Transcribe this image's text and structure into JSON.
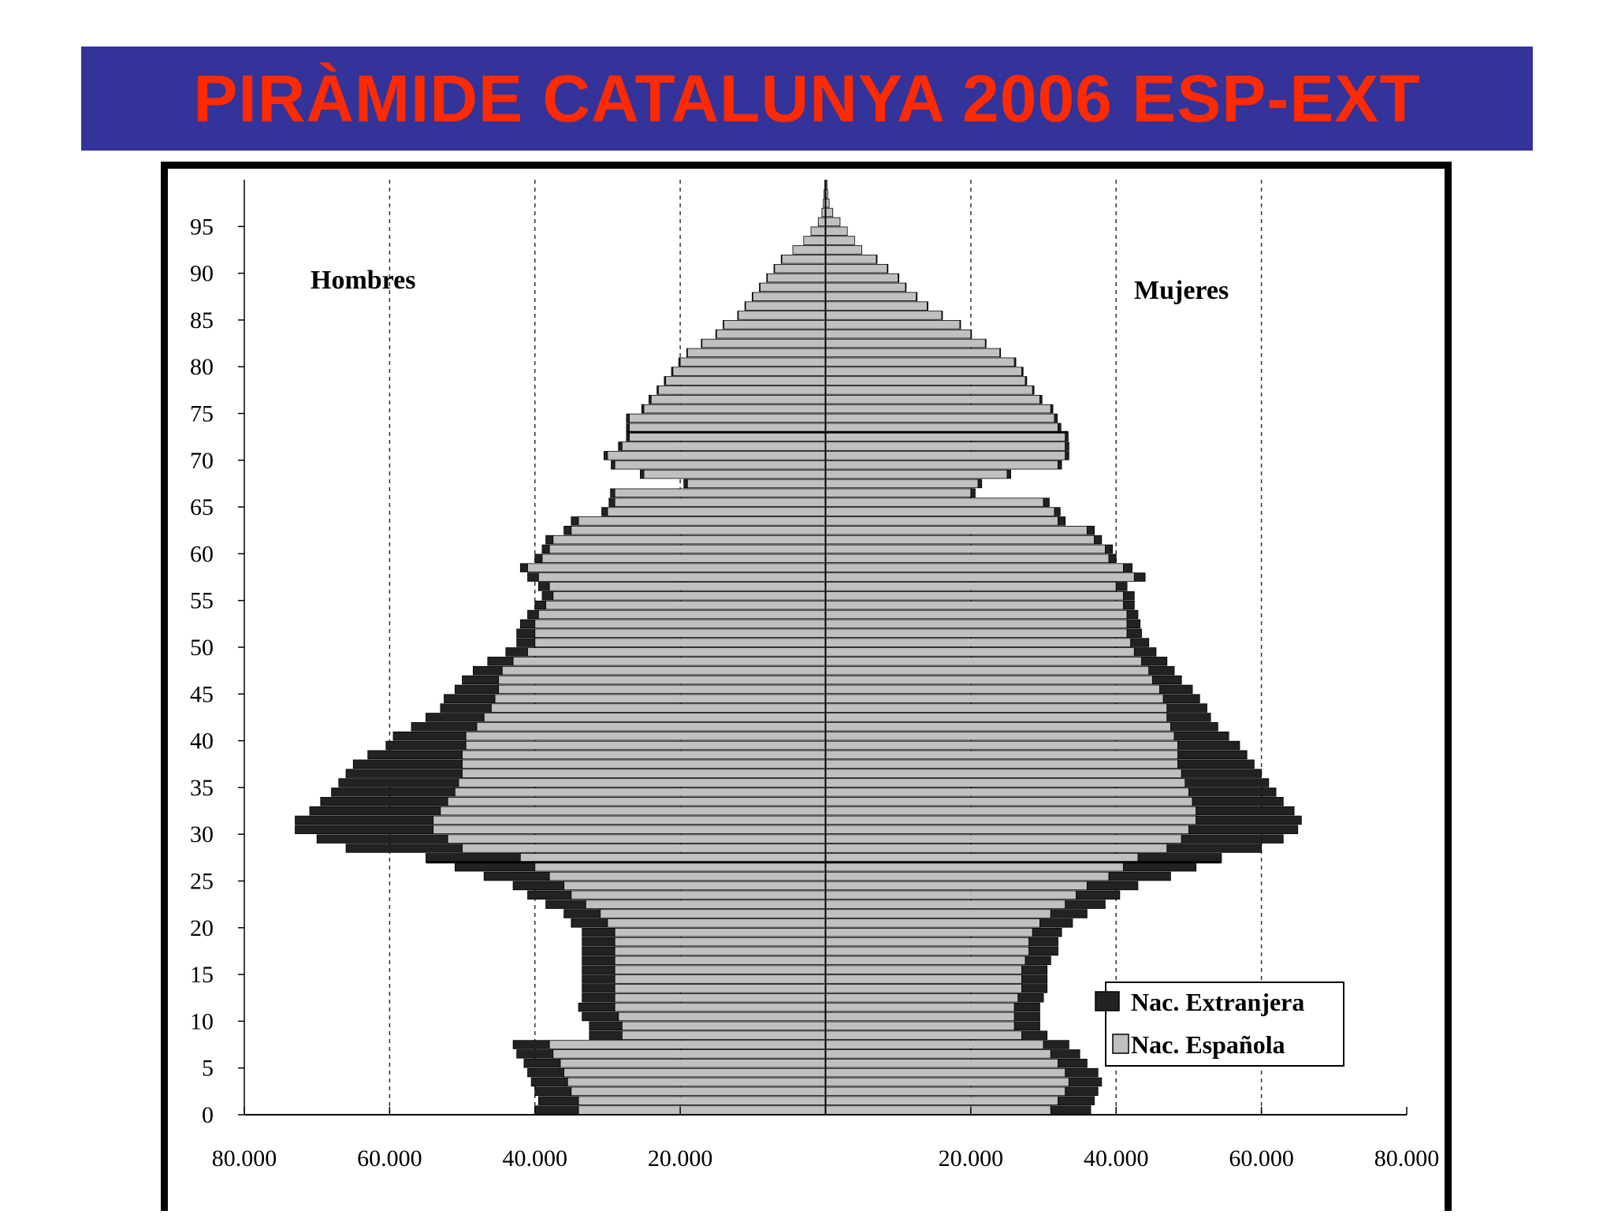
{
  "title": "PIRÀMIDE CATALUNYA 2006 ESP-EXT",
  "chart_data": {
    "type": "bar",
    "orientation": "horizontal-pyramid",
    "side_labels": {
      "left": "Hombres",
      "right": "Mujeres"
    },
    "x_ticks": [
      "80.000",
      "60.000",
      "40.000",
      "20.000",
      "20.000",
      "40.000",
      "60.000",
      "80.000"
    ],
    "xlim": [
      -80000,
      80000
    ],
    "y_ticks": [
      "0",
      "5",
      "10",
      "15",
      "20",
      "25",
      "30",
      "35",
      "40",
      "45",
      "50",
      "55",
      "60",
      "65",
      "70",
      "75",
      "80",
      "85",
      "90",
      "95"
    ],
    "ylim": [
      0,
      99
    ],
    "legend": [
      "Nac. Extranjera",
      "Nac. Española"
    ],
    "legend_position": "bottom-right",
    "colors": {
      "extranjera": "#222222",
      "espanola": "#c0c0c0"
    },
    "age_group_boundaries": [
      0,
      5,
      10,
      15,
      20,
      25,
      30,
      35,
      40,
      45,
      50,
      55,
      60,
      65,
      70,
      75,
      80,
      85,
      90,
      95
    ],
    "series": [
      {
        "name": "Nac. Española",
        "hombres_by_age": [
          34000,
          34000,
          35000,
          35500,
          36000,
          36500,
          37500,
          38000,
          28000,
          28000,
          28500,
          29000,
          29000,
          29000,
          29000,
          29000,
          29000,
          29000,
          29000,
          29000,
          30000,
          31000,
          33000,
          35000,
          36000,
          38000,
          40000,
          42000,
          50000,
          52000,
          54000,
          54000,
          53000,
          52000,
          51000,
          50500,
          50000,
          50000,
          50000,
          49500,
          49500,
          48000,
          47000,
          46000,
          45500,
          45000,
          45000,
          44500,
          43000,
          41000,
          40000,
          40000,
          40000,
          39500,
          38500,
          37500,
          38000,
          39500,
          41000,
          39000,
          38000,
          37500,
          35000,
          34000,
          30000,
          29000,
          29000,
          19000,
          25000,
          29000,
          30000,
          28000,
          27000,
          27000,
          27000,
          25000,
          24000,
          23000,
          22000,
          21000,
          20000,
          19000,
          17000,
          15000,
          14000,
          12000,
          11000,
          10000,
          9000,
          8000,
          7000,
          6000,
          4500,
          3000,
          2000,
          1000,
          500,
          300,
          200,
          100
        ],
        "mujeres_by_age": [
          31000,
          32000,
          33000,
          33500,
          33000,
          32000,
          31000,
          30000,
          27000,
          26000,
          26000,
          26000,
          26500,
          27000,
          27000,
          27000,
          27500,
          28000,
          28000,
          28500,
          29500,
          31000,
          33000,
          34500,
          36000,
          39000,
          41000,
          43000,
          47000,
          49000,
          50000,
          51000,
          51000,
          50500,
          50000,
          49500,
          49000,
          48500,
          48500,
          48500,
          48000,
          47500,
          47000,
          47000,
          46500,
          46000,
          45000,
          44500,
          43500,
          42500,
          42000,
          41500,
          41500,
          41500,
          41000,
          41000,
          40000,
          42500,
          41000,
          39000,
          38500,
          37000,
          36000,
          32000,
          31500,
          30000,
          20000,
          21000,
          25000,
          32000,
          33000,
          33000,
          33000,
          32000,
          31500,
          31000,
          29500,
          28500,
          27500,
          27000,
          26000,
          24000,
          22000,
          20000,
          18500,
          16000,
          14000,
          12500,
          11000,
          10000,
          8500,
          7000,
          5000,
          4000,
          3000,
          2000,
          1000,
          500,
          300,
          200
        ]
      },
      {
        "name": "Nac. Extranjera",
        "hombres_by_age": [
          6000,
          5500,
          5000,
          5000,
          5000,
          5000,
          5000,
          5000,
          4500,
          4500,
          5000,
          5000,
          4500,
          4500,
          4500,
          4500,
          4500,
          4500,
          4500,
          4500,
          5000,
          5000,
          5500,
          6000,
          7000,
          9000,
          11000,
          13000,
          16000,
          18000,
          19000,
          19000,
          18000,
          17500,
          17000,
          16500,
          16000,
          15000,
          13000,
          11000,
          10000,
          9000,
          8000,
          7000,
          7000,
          6000,
          5000,
          4000,
          3500,
          3000,
          2500,
          2500,
          2000,
          1500,
          1500,
          1500,
          1500,
          1500,
          1000,
          1000,
          1000,
          1000,
          1000,
          1000,
          800,
          800,
          600,
          500,
          500,
          500,
          500,
          500,
          400,
          400,
          400,
          300,
          300,
          200,
          200,
          200,
          200,
          100,
          100,
          100,
          100,
          100,
          100,
          100,
          100,
          100,
          100,
          100,
          0,
          0,
          0,
          0,
          0,
          0,
          0,
          0
        ],
        "mujeres_by_age": [
          5500,
          5000,
          4500,
          4500,
          4500,
          4000,
          4000,
          3500,
          3500,
          3500,
          3500,
          3500,
          3500,
          3500,
          3500,
          3500,
          3500,
          4000,
          4000,
          4000,
          4500,
          5000,
          5500,
          6000,
          7000,
          8500,
          10000,
          11500,
          13000,
          14000,
          15000,
          14500,
          13500,
          12500,
          12000,
          11500,
          11000,
          10500,
          9500,
          8500,
          7500,
          6500,
          6000,
          5500,
          5000,
          4500,
          4000,
          3500,
          3500,
          3000,
          2500,
          2000,
          1800,
          1500,
          1500,
          1500,
          1500,
          1500,
          1200,
          1000,
          1000,
          1000,
          1000,
          1000,
          800,
          800,
          600,
          500,
          500,
          500,
          500,
          500,
          400,
          400,
          400,
          300,
          300,
          200,
          200,
          200,
          200,
          100,
          100,
          100,
          100,
          100,
          100,
          100,
          100,
          100,
          100,
          100,
          0,
          0,
          0,
          0,
          0,
          0,
          0,
          0
        ]
      }
    ]
  }
}
